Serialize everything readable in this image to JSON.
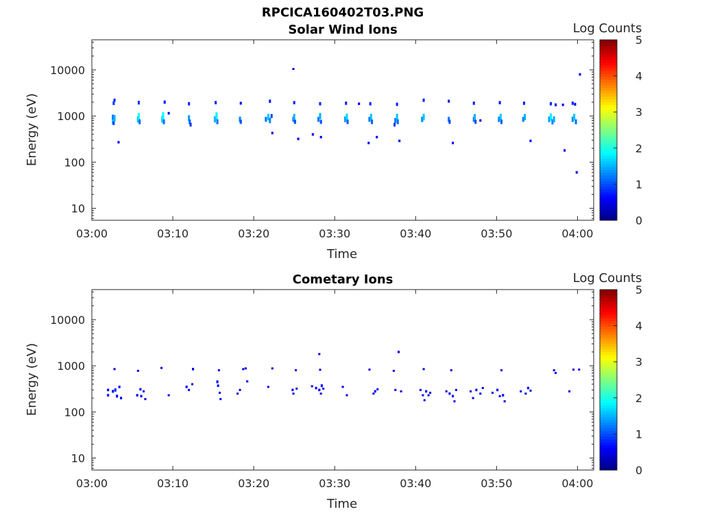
{
  "figure_title": "RPCICA160402T03.PNG",
  "chart_data": [
    {
      "type": "heatmap",
      "title": "Solar Wind Ions",
      "xlabel": "Time",
      "ylabel": "Energy (eV)",
      "x_ticks": [
        "03:00",
        "03:10",
        "03:20",
        "03:30",
        "03:40",
        "03:50",
        "04:00"
      ],
      "x_range_minutes": [
        0,
        62
      ],
      "y_scale": "log",
      "y_ticks": [
        "10",
        "100",
        "1000",
        "10000"
      ],
      "y_range": [
        5.5,
        45000
      ],
      "colorbar": {
        "label": "Log Counts",
        "min": 0,
        "max": 5,
        "ticks": [
          "0",
          "1",
          "2",
          "3",
          "4",
          "5"
        ],
        "colormap": "jet"
      },
      "points": [
        [
          2.6,
          850,
          1.3
        ],
        [
          2.6,
          780,
          1.6
        ],
        [
          2.6,
          950,
          1.2
        ],
        [
          2.7,
          700,
          0.9
        ],
        [
          2.8,
          900,
          1.5
        ],
        [
          2.8,
          2200,
          0.8
        ],
        [
          2.7,
          1900,
          0.9
        ],
        [
          3.3,
          270,
          0.6
        ],
        [
          5.7,
          850,
          1.5
        ],
        [
          5.8,
          950,
          1.9
        ],
        [
          5.9,
          750,
          1.2
        ],
        [
          5.8,
          1950,
          0.9
        ],
        [
          8.7,
          850,
          1.6
        ],
        [
          8.8,
          1000,
          1.9
        ],
        [
          8.9,
          750,
          1.2
        ],
        [
          9.0,
          2000,
          0.8
        ],
        [
          9.5,
          1150,
          0.6
        ],
        [
          12.0,
          900,
          1.4
        ],
        [
          12.1,
          750,
          1.1
        ],
        [
          12.0,
          1850,
          0.8
        ],
        [
          12.2,
          650,
          0.9
        ],
        [
          15.2,
          850,
          1.5
        ],
        [
          15.4,
          1000,
          1.8
        ],
        [
          15.5,
          750,
          1.2
        ],
        [
          15.3,
          1950,
          0.8
        ],
        [
          18.3,
          850,
          1.3
        ],
        [
          18.4,
          750,
          1.0
        ],
        [
          18.4,
          1900,
          0.7
        ],
        [
          21.5,
          850,
          1.2
        ],
        [
          21.8,
          950,
          1.6
        ],
        [
          22.0,
          800,
          1.3
        ],
        [
          22.2,
          1000,
          1.0
        ],
        [
          22.0,
          2100,
          0.8
        ],
        [
          22.3,
          430,
          0.6
        ],
        [
          24.9,
          850,
          1.2
        ],
        [
          25.0,
          950,
          1.5
        ],
        [
          25.1,
          750,
          1.0
        ],
        [
          25.0,
          1950,
          0.8
        ],
        [
          25.5,
          320,
          0.6
        ],
        [
          24.9,
          10500,
          0.5
        ],
        [
          27.3,
          400,
          0.6
        ],
        [
          28.0,
          850,
          1.2
        ],
        [
          28.2,
          1000,
          1.5
        ],
        [
          28.3,
          750,
          1.0
        ],
        [
          28.2,
          1850,
          0.8
        ],
        [
          28.3,
          350,
          0.6
        ],
        [
          31.3,
          850,
          1.4
        ],
        [
          31.5,
          950,
          1.7
        ],
        [
          31.6,
          750,
          1.1
        ],
        [
          31.4,
          1900,
          0.8
        ],
        [
          33.0,
          1850,
          0.6
        ],
        [
          34.3,
          850,
          1.2
        ],
        [
          34.5,
          950,
          1.6
        ],
        [
          34.6,
          750,
          1.1
        ],
        [
          34.4,
          1850,
          0.8
        ],
        [
          35.2,
          350,
          0.6
        ],
        [
          34.2,
          260,
          0.6
        ],
        [
          37.5,
          800,
          1.2
        ],
        [
          37.7,
          950,
          1.6
        ],
        [
          37.8,
          750,
          1.2
        ],
        [
          37.7,
          1800,
          0.8
        ],
        [
          38.0,
          290,
          0.6
        ],
        [
          37.4,
          650,
          0.9
        ],
        [
          40.8,
          850,
          1.3
        ],
        [
          41.0,
          950,
          1.6
        ],
        [
          41.0,
          2200,
          0.8
        ],
        [
          44.1,
          850,
          1.2
        ],
        [
          44.2,
          750,
          1.0
        ],
        [
          44.1,
          2100,
          0.7
        ],
        [
          44.6,
          260,
          0.6
        ],
        [
          47.2,
          850,
          1.2
        ],
        [
          47.3,
          950,
          1.5
        ],
        [
          47.4,
          750,
          1.0
        ],
        [
          47.2,
          1900,
          0.8
        ],
        [
          48.0,
          800,
          0.6
        ],
        [
          50.3,
          850,
          1.3
        ],
        [
          50.5,
          950,
          1.6
        ],
        [
          50.6,
          750,
          1.1
        ],
        [
          50.4,
          1950,
          0.8
        ],
        [
          53.3,
          850,
          1.2
        ],
        [
          53.5,
          950,
          1.5
        ],
        [
          53.4,
          1900,
          0.8
        ],
        [
          54.2,
          290,
          0.6
        ],
        [
          56.5,
          850,
          1.4
        ],
        [
          56.7,
          950,
          1.8
        ],
        [
          56.9,
          750,
          1.3
        ],
        [
          57.1,
          850,
          1.5
        ],
        [
          56.7,
          1850,
          0.8
        ],
        [
          57.3,
          1750,
          0.7
        ],
        [
          58.2,
          1750,
          0.6
        ],
        [
          58.4,
          180,
          0.6
        ],
        [
          59.4,
          850,
          1.3
        ],
        [
          59.6,
          950,
          1.6
        ],
        [
          59.8,
          750,
          1.2
        ],
        [
          59.4,
          1900,
          0.8
        ],
        [
          59.7,
          1800,
          0.7
        ],
        [
          60.3,
          8000,
          0.6
        ],
        [
          59.9,
          60,
          0.6
        ]
      ]
    },
    {
      "type": "heatmap",
      "title": "Cometary Ions",
      "xlabel": "Time",
      "ylabel": "Energy (eV)",
      "x_ticks": [
        "03:00",
        "03:10",
        "03:20",
        "03:30",
        "03:40",
        "03:50",
        "04:00"
      ],
      "x_range_minutes": [
        0,
        62
      ],
      "y_scale": "log",
      "y_ticks": [
        "10",
        "100",
        "1000",
        "10000"
      ],
      "y_range": [
        5.5,
        45000
      ],
      "colorbar": {
        "label": "Log Counts",
        "min": 0,
        "max": 5,
        "ticks": [
          "0",
          "1",
          "2",
          "3",
          "4",
          "5"
        ],
        "colormap": "jet"
      },
      "points": [
        [
          2.0,
          300,
          0.6
        ],
        [
          2.0,
          230,
          0.6
        ],
        [
          2.6,
          280,
          0.7
        ],
        [
          2.9,
          300,
          0.8
        ],
        [
          3.1,
          220,
          0.7
        ],
        [
          3.4,
          350,
          0.6
        ],
        [
          3.6,
          200,
          0.6
        ],
        [
          2.8,
          850,
          0.5
        ],
        [
          5.6,
          230,
          0.6
        ],
        [
          5.7,
          780,
          0.5
        ],
        [
          6.0,
          310,
          0.6
        ],
        [
          6.4,
          280,
          0.5
        ],
        [
          6.6,
          190,
          0.5
        ],
        [
          6.1,
          220,
          0.6
        ],
        [
          8.6,
          900,
          0.5
        ],
        [
          9.5,
          230,
          0.5
        ],
        [
          11.7,
          350,
          0.6
        ],
        [
          12.0,
          300,
          0.5
        ],
        [
          12.4,
          400,
          0.5
        ],
        [
          12.5,
          850,
          0.6
        ],
        [
          15.5,
          450,
          0.7
        ],
        [
          15.6,
          370,
          0.6
        ],
        [
          15.8,
          260,
          0.5
        ],
        [
          15.9,
          190,
          0.5
        ],
        [
          15.7,
          800,
          0.5
        ],
        [
          18.0,
          250,
          0.5
        ],
        [
          18.3,
          300,
          0.5
        ],
        [
          18.7,
          850,
          0.5
        ],
        [
          19.2,
          460,
          0.5
        ],
        [
          19.0,
          880,
          0.5
        ],
        [
          21.8,
          350,
          0.5
        ],
        [
          22.3,
          880,
          0.5
        ],
        [
          24.8,
          300,
          0.6
        ],
        [
          24.9,
          250,
          0.5
        ],
        [
          25.3,
          320,
          0.5
        ],
        [
          25.2,
          800,
          0.5
        ],
        [
          27.2,
          360,
          0.5
        ],
        [
          27.7,
          330,
          0.6
        ],
        [
          28.1,
          300,
          0.6
        ],
        [
          28.4,
          370,
          0.7
        ],
        [
          28.6,
          320,
          0.5
        ],
        [
          28.3,
          250,
          0.5
        ],
        [
          28.2,
          820,
          0.5
        ],
        [
          28.1,
          1800,
          0.5
        ],
        [
          31.0,
          350,
          0.5
        ],
        [
          31.5,
          230,
          0.5
        ],
        [
          34.3,
          830,
          0.5
        ],
        [
          34.8,
          250,
          0.5
        ],
        [
          35.0,
          280,
          0.6
        ],
        [
          35.3,
          310,
          0.5
        ],
        [
          37.3,
          780,
          0.5
        ],
        [
          37.5,
          300,
          0.5
        ],
        [
          37.9,
          2000,
          0.6
        ],
        [
          38.2,
          280,
          0.5
        ],
        [
          40.6,
          300,
          0.5
        ],
        [
          40.9,
          230,
          0.5
        ],
        [
          41.1,
          180,
          0.5
        ],
        [
          41.3,
          280,
          0.6
        ],
        [
          41.6,
          230,
          0.5
        ],
        [
          41.8,
          260,
          0.5
        ],
        [
          41.0,
          850,
          0.5
        ],
        [
          43.8,
          280,
          0.5
        ],
        [
          44.2,
          250,
          0.6
        ],
        [
          44.6,
          220,
          0.6
        ],
        [
          44.8,
          170,
          0.5
        ],
        [
          45.0,
          300,
          0.5
        ],
        [
          44.4,
          800,
          0.5
        ],
        [
          46.8,
          280,
          0.5
        ],
        [
          47.1,
          200,
          0.5
        ],
        [
          47.5,
          300,
          0.6
        ],
        [
          48.0,
          250,
          0.5
        ],
        [
          48.3,
          330,
          0.5
        ],
        [
          49.5,
          260,
          0.5
        ],
        [
          50.1,
          300,
          0.6
        ],
        [
          50.4,
          220,
          0.5
        ],
        [
          50.8,
          230,
          0.6
        ],
        [
          51.0,
          170,
          0.5
        ],
        [
          50.6,
          800,
          0.5
        ],
        [
          53.0,
          280,
          0.5
        ],
        [
          53.6,
          250,
          0.5
        ],
        [
          53.9,
          330,
          0.6
        ],
        [
          54.2,
          290,
          0.5
        ],
        [
          57.1,
          800,
          0.5
        ],
        [
          57.3,
          700,
          0.5
        ],
        [
          59.5,
          830,
          0.5
        ],
        [
          60.2,
          830,
          0.5
        ],
        [
          59.0,
          280,
          0.5
        ]
      ]
    }
  ]
}
